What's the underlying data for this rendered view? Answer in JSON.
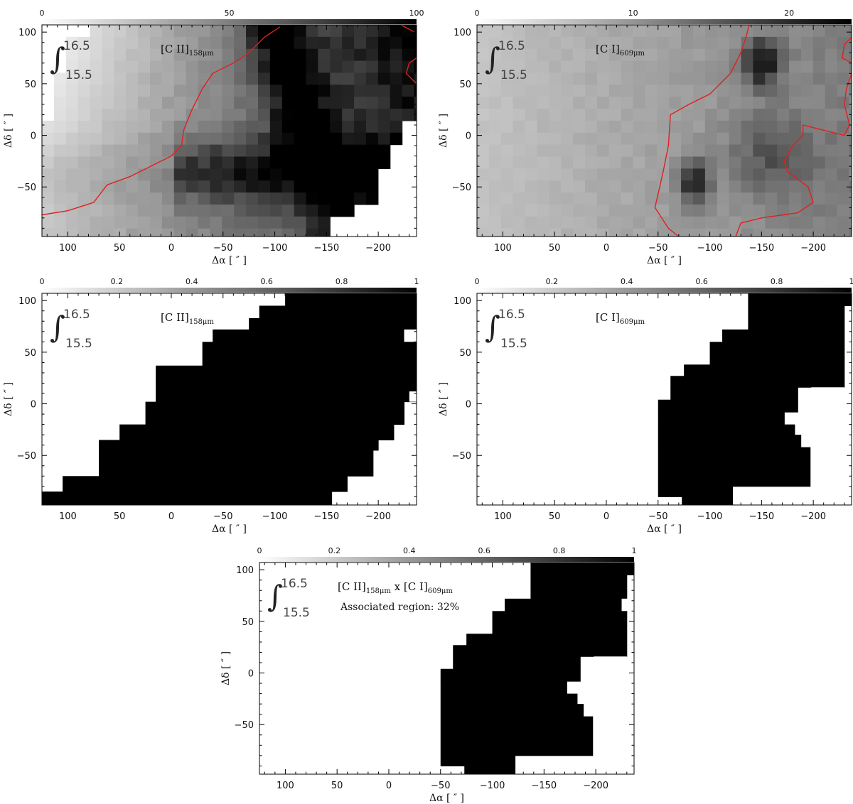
{
  "chart_data": [
    {
      "id": "cii-intensity",
      "type": "heatmap",
      "colorbar": {
        "ticks": [
          "0",
          "50",
          "100"
        ],
        "range": [
          0,
          100
        ],
        "location": "top"
      },
      "species": "[C II]",
      "species_sub": "158μm",
      "integral": {
        "upper": "16.5",
        "lower": "15.5"
      },
      "xlabel": "Δα [ ″ ]",
      "ylabel": "Δδ [ ″ ]",
      "xlim": [
        125,
        -237
      ],
      "ylim": [
        -98,
        107
      ],
      "xticks": [
        {
          "v": 100,
          "label": "100"
        },
        {
          "v": 50,
          "label": "50"
        },
        {
          "v": 0,
          "label": "0"
        },
        {
          "v": -50,
          "label": "−50"
        },
        {
          "v": -100,
          "label": "−100"
        },
        {
          "v": -150,
          "label": "−150"
        },
        {
          "v": -200,
          "label": "−200"
        }
      ],
      "yticks": [
        {
          "v": 100,
          "label": "100"
        },
        {
          "v": 50,
          "label": "50"
        },
        {
          "v": 0,
          "label": "0"
        },
        {
          "v": -50,
          "label": "−50"
        }
      ],
      "contour_color": "#e02020",
      "contours": [
        [
          [
            125,
            -77
          ],
          [
            100,
            -73
          ],
          [
            75,
            -65
          ],
          [
            62,
            -48
          ],
          [
            40,
            -40
          ],
          [
            20,
            -30
          ],
          [
            0,
            -20
          ],
          [
            -10,
            -10
          ],
          [
            -12,
            5
          ],
          [
            -20,
            25
          ],
          [
            -30,
            45
          ],
          [
            -40,
            60
          ],
          [
            -60,
            70
          ],
          [
            -75,
            80
          ],
          [
            -90,
            95
          ],
          [
            -105,
            105
          ]
        ],
        [
          [
            -222,
            107
          ],
          [
            -235,
            100
          ]
        ],
        [
          [
            -237,
            75
          ],
          [
            -230,
            70
          ],
          [
            -227,
            60
          ],
          [
            -237,
            50
          ]
        ]
      ]
    },
    {
      "id": "ci-intensity",
      "type": "heatmap",
      "colorbar": {
        "ticks": [
          "0",
          "10",
          "20"
        ],
        "range": [
          0,
          24
        ],
        "location": "top"
      },
      "species": "[C I]",
      "species_sub": "609μm",
      "integral": {
        "upper": "16.5",
        "lower": "15.5"
      },
      "xlabel": "Δα [ ″ ]",
      "ylabel": "Δδ [ ″ ]",
      "xlim": [
        125,
        -237
      ],
      "ylim": [
        -98,
        107
      ],
      "xticks": [
        {
          "v": 100,
          "label": "100"
        },
        {
          "v": 50,
          "label": "50"
        },
        {
          "v": 0,
          "label": "0"
        },
        {
          "v": -50,
          "label": "−50"
        },
        {
          "v": -100,
          "label": "−100"
        },
        {
          "v": -150,
          "label": "−150"
        },
        {
          "v": -200,
          "label": "−200"
        }
      ],
      "yticks": [
        {
          "v": 100,
          "label": "100"
        },
        {
          "v": 50,
          "label": "50"
        },
        {
          "v": 0,
          "label": "0"
        },
        {
          "v": -50,
          "label": "−50"
        }
      ],
      "contour_color": "#e02020",
      "contours": [
        [
          [
            -70,
            -98
          ],
          [
            -60,
            -90
          ],
          [
            -47,
            -70
          ],
          [
            -55,
            -35
          ],
          [
            -60,
            -10
          ],
          [
            -62,
            20
          ],
          [
            -80,
            30
          ],
          [
            -100,
            40
          ],
          [
            -120,
            60
          ],
          [
            -130,
            80
          ],
          [
            -135,
            95
          ],
          [
            -138,
            107
          ]
        ],
        [
          [
            -125,
            -98
          ],
          [
            -130,
            -85
          ],
          [
            -150,
            -80
          ],
          [
            -185,
            -75
          ],
          [
            -200,
            -65
          ],
          [
            -195,
            -50
          ],
          [
            -175,
            -35
          ],
          [
            -172,
            -25
          ],
          [
            -180,
            -10
          ],
          [
            -190,
            0
          ],
          [
            -190,
            10
          ],
          [
            -210,
            5
          ],
          [
            -230,
            0
          ],
          [
            -235,
            10
          ],
          [
            -230,
            30
          ],
          [
            -232,
            45
          ],
          [
            -237,
            60
          ]
        ],
        [
          [
            -237,
            95
          ],
          [
            -230,
            88
          ],
          [
            -228,
            75
          ],
          [
            -237,
            70
          ]
        ]
      ]
    },
    {
      "id": "cii-mask",
      "type": "heatmap",
      "colorbar": {
        "ticks": [
          "0",
          "0.2",
          "0.4",
          "0.6",
          "0.8",
          "1"
        ],
        "range": [
          0,
          1
        ],
        "location": "top"
      },
      "species": "[C II]",
      "species_sub": "158μm",
      "integral": {
        "upper": "16.5",
        "lower": "15.5"
      },
      "xlabel": "Δα [ ″ ]",
      "ylabel": "Δδ [ ″ ]",
      "xlim": [
        125,
        -237
      ],
      "ylim": [
        -98,
        107
      ],
      "xticks": [
        {
          "v": 100,
          "label": "100"
        },
        {
          "v": 50,
          "label": "50"
        },
        {
          "v": 0,
          "label": "0"
        },
        {
          "v": -50,
          "label": "−50"
        },
        {
          "v": -100,
          "label": "−100"
        },
        {
          "v": -150,
          "label": "−150"
        },
        {
          "v": -200,
          "label": "−200"
        }
      ],
      "yticks": [
        {
          "v": 100,
          "label": "100"
        },
        {
          "v": 50,
          "label": "50"
        },
        {
          "v": 0,
          "label": "0"
        },
        {
          "v": -50,
          "label": "−50"
        }
      ],
      "mask_rows": [
        {
          "y": [
            95,
            107
          ],
          "x": [
            -110,
            -237
          ]
        },
        {
          "y": [
            83,
            95
          ],
          "x": [
            -85,
            -237
          ]
        },
        {
          "y": [
            72,
            83
          ],
          "x": [
            -75,
            -237
          ]
        },
        {
          "y": [
            60,
            72
          ],
          "x": [
            -40,
            -237
          ]
        },
        {
          "y": [
            37,
            60
          ],
          "x": [
            -30,
            -237
          ]
        },
        {
          "y": [
            25,
            37
          ],
          "x": [
            15,
            -237
          ]
        },
        {
          "y": [
            2,
            25
          ],
          "x": [
            15,
            -237
          ]
        },
        {
          "y": [
            -20,
            2
          ],
          "x": [
            25,
            -225
          ]
        },
        {
          "y": [
            -35,
            -20
          ],
          "x": [
            50,
            -215
          ]
        },
        {
          "y": [
            -45,
            -35
          ],
          "x": [
            70,
            -200
          ]
        },
        {
          "y": [
            -70,
            -45
          ],
          "x": [
            70,
            -195
          ]
        },
        {
          "y": [
            -85,
            -70
          ],
          "x": [
            105,
            -170
          ]
        },
        {
          "y": [
            -98,
            -85
          ],
          "x": [
            125,
            -155
          ]
        }
      ],
      "mask_holes": [
        {
          "x": [
            -225,
            -237
          ],
          "y": [
            60,
            72
          ]
        },
        {
          "x": [
            -230,
            -237
          ],
          "y": [
            2,
            12
          ]
        }
      ]
    },
    {
      "id": "ci-mask",
      "type": "heatmap",
      "colorbar": {
        "ticks": [
          "0",
          "0.2",
          "0.4",
          "0.6",
          "0.8",
          "1"
        ],
        "range": [
          0,
          1
        ],
        "location": "top"
      },
      "species": "[C I]",
      "species_sub": "609μm",
      "integral": {
        "upper": "16.5",
        "lower": "15.5"
      },
      "xlabel": "Δα [ ″ ]",
      "ylabel": "Δδ [ ″ ]",
      "xlim": [
        125,
        -237
      ],
      "ylim": [
        -98,
        107
      ],
      "xticks": [
        {
          "v": 100,
          "label": "100"
        },
        {
          "v": 50,
          "label": "50"
        },
        {
          "v": 0,
          "label": "0"
        },
        {
          "v": -50,
          "label": "−50"
        },
        {
          "v": -100,
          "label": "−100"
        },
        {
          "v": -150,
          "label": "−150"
        },
        {
          "v": -200,
          "label": "−200"
        }
      ],
      "yticks": [
        {
          "v": 100,
          "label": "100"
        },
        {
          "v": 50,
          "label": "50"
        },
        {
          "v": 0,
          "label": "0"
        },
        {
          "v": -50,
          "label": "−50"
        }
      ],
      "mask_rows": [
        {
          "y": [
            95,
            107
          ],
          "x": [
            -137,
            -237
          ]
        },
        {
          "y": [
            84,
            95
          ],
          "x": [
            -137,
            -230
          ]
        },
        {
          "y": [
            72,
            84
          ],
          "x": [
            -137,
            -230
          ]
        },
        {
          "y": [
            60,
            72
          ],
          "x": [
            -112,
            -230
          ]
        },
        {
          "y": [
            38,
            60
          ],
          "x": [
            -100,
            -230
          ]
        },
        {
          "y": [
            27,
            38
          ],
          "x": [
            -75,
            -230
          ]
        },
        {
          "y": [
            16,
            27
          ],
          "x": [
            -62,
            -230
          ]
        },
        {
          "y": [
            4,
            16
          ],
          "x": [
            -62,
            -185
          ]
        },
        {
          "y": [
            -8,
            4
          ],
          "x": [
            -50,
            -185
          ]
        },
        {
          "y": [
            -20,
            -8
          ],
          "x": [
            -50,
            -172
          ]
        },
        {
          "y": [
            -30,
            -20
          ],
          "x": [
            -50,
            -182
          ]
        },
        {
          "y": [
            -42,
            -30
          ],
          "x": [
            -50,
            -188
          ]
        },
        {
          "y": [
            -80,
            -42
          ],
          "x": [
            -50,
            -197
          ]
        },
        {
          "y": [
            -90,
            -80
          ],
          "x": [
            -50,
            -122
          ]
        },
        {
          "y": [
            -98,
            -90
          ],
          "x": [
            -73,
            -122
          ]
        }
      ],
      "mask_holes": [
        {
          "x": [
            -198,
            -230
          ],
          "y": [
            4,
            16
          ]
        }
      ]
    },
    {
      "id": "association-mask",
      "type": "heatmap",
      "colorbar": {
        "ticks": [
          "0",
          "0.2",
          "0.4",
          "0.6",
          "0.8",
          "1"
        ],
        "range": [
          0,
          1
        ],
        "location": "top"
      },
      "species": "[C II]",
      "species_sub": "158μm",
      "species2": "[C I]",
      "species2_sub": "609μm",
      "times": "x",
      "annotation": "Associated region: 32%",
      "integral": {
        "upper": "16.5",
        "lower": "15.5"
      },
      "xlabel": "Δα [ ″ ]",
      "ylabel": "Δδ [ ″ ]",
      "xlim": [
        125,
        -237
      ],
      "ylim": [
        -98,
        107
      ],
      "xticks": [
        {
          "v": 100,
          "label": "100"
        },
        {
          "v": 50,
          "label": "50"
        },
        {
          "v": 0,
          "label": "0"
        },
        {
          "v": -50,
          "label": "−50"
        },
        {
          "v": -100,
          "label": "−100"
        },
        {
          "v": -150,
          "label": "−150"
        },
        {
          "v": -200,
          "label": "−200"
        }
      ],
      "yticks": [
        {
          "v": 100,
          "label": "100"
        },
        {
          "v": 50,
          "label": "50"
        },
        {
          "v": 0,
          "label": "0"
        },
        {
          "v": -50,
          "label": "−50"
        }
      ],
      "mask_rows": [
        {
          "y": [
            95,
            107
          ],
          "x": [
            -137,
            -237
          ]
        },
        {
          "y": [
            84,
            95
          ],
          "x": [
            -137,
            -230
          ]
        },
        {
          "y": [
            72,
            84
          ],
          "x": [
            -137,
            -230
          ]
        },
        {
          "y": [
            60,
            72
          ],
          "x": [
            -112,
            -230
          ]
        },
        {
          "y": [
            38,
            60
          ],
          "x": [
            -100,
            -230
          ]
        },
        {
          "y": [
            27,
            38
          ],
          "x": [
            -75,
            -230
          ]
        },
        {
          "y": [
            16,
            27
          ],
          "x": [
            -62,
            -230
          ]
        },
        {
          "y": [
            4,
            16
          ],
          "x": [
            -62,
            -185
          ]
        },
        {
          "y": [
            -8,
            4
          ],
          "x": [
            -50,
            -185
          ]
        },
        {
          "y": [
            -20,
            -8
          ],
          "x": [
            -50,
            -172
          ]
        },
        {
          "y": [
            -30,
            -20
          ],
          "x": [
            -50,
            -182
          ]
        },
        {
          "y": [
            -42,
            -30
          ],
          "x": [
            -50,
            -188
          ]
        },
        {
          "y": [
            -80,
            -42
          ],
          "x": [
            -50,
            -197
          ]
        },
        {
          "y": [
            -90,
            -80
          ],
          "x": [
            -50,
            -122
          ]
        },
        {
          "y": [
            -98,
            -90
          ],
          "x": [
            -73,
            -122
          ]
        }
      ],
      "mask_holes": [
        {
          "x": [
            -198,
            -230
          ],
          "y": [
            4,
            16
          ]
        },
        {
          "x": [
            -225,
            -237
          ],
          "y": [
            60,
            72
          ]
        }
      ]
    }
  ]
}
